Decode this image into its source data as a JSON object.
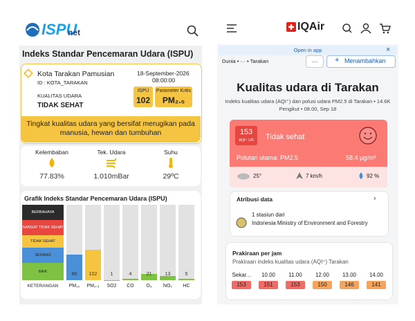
{
  "left": {
    "logo": {
      "main": "ISPU",
      "sub": "net"
    },
    "title": "Indeks Standar Pencemaran Udara (ISPU)",
    "station": {
      "name": "Kota Tarakan Pamusian",
      "date": "18-September-2026",
      "time": "08:00:00",
      "id": "ID : KOTA_TARAKAN",
      "quality_label": "KUALITAS UDARA",
      "quality": "TIDAK SEHAT",
      "ispu_label": "ISPU",
      "ispu": 102,
      "param_label": "Parameter Kritis",
      "param": "PM₂.₅"
    },
    "banner": "Tingkat kualitas udara yang bersifat merugikan pada manusia, hewan dan tumbuhan",
    "weather": [
      {
        "label": "Kelembaban",
        "value": "77.83%"
      },
      {
        "label": "Tek. Udara",
        "value": "1.010mBar"
      },
      {
        "label": "Suhu",
        "value": "29ºC"
      }
    ],
    "chart": {
      "title": "Grafik Indeks Standar Pencemaran Udara (ISPU)",
      "legend": [
        {
          "label": "BERBAHAYA",
          "color": "#2b2b2b"
        },
        {
          "label": "SANGAT TIDAK SEHAT",
          "color": "#e8473f"
        },
        {
          "label": "TIDAK SEHAT",
          "color": "#f5c542"
        },
        {
          "label": "SEDANG",
          "color": "#4a90d9"
        },
        {
          "label": "BAIK",
          "color": "#7dc242"
        }
      ],
      "legend_title": "KETERANGAN",
      "categories": [
        "PM₁₀",
        "PM₂.₅",
        "SO2",
        "CO",
        "O₃",
        "NO₂",
        "HC"
      ],
      "values": [
        86,
        102,
        1,
        4,
        21,
        13,
        5
      ],
      "colors": [
        "#4a90d9",
        "#f5c542",
        "#7dc242",
        "#7dc242",
        "#7dc242",
        "#7dc242",
        "#7dc242"
      ],
      "ylim": [
        0,
        250
      ]
    }
  },
  "right": {
    "logo": "IQAir",
    "open_app": "Open in app",
    "breadcrumb": [
      "Dunia",
      "···",
      "Tarakan"
    ],
    "more": "···",
    "add": "Menambahkan",
    "title": "Kualitas udara di Tarakan",
    "subtitle": "Indeks kualitas udara (AQI⁺) dan polusi udara PM2.5 di Tarakan • 14.6K Pengikut • 08.00, Sep 18",
    "aqi": 153,
    "aqi_unit": "AQI⁺ US",
    "status": "Tidak sehat",
    "pollutant": "Polutan utama: PM2.5",
    "concentration": "58.4 µg/m³",
    "temp": "25°",
    "wind": "7 km/h",
    "humidity": "92 %",
    "attribution": {
      "title": "Atribusi data",
      "line1": "1 stasiun dari",
      "line2": "Indonesia Ministry of Environment and Forestry"
    },
    "forecast": {
      "title": "Prakiraan per jam",
      "subtitle": "Prakiraan indeks kualitas udara (AQI⁺) Tarakan",
      "hours": [
        "Sekar...",
        "10.00",
        "11.00",
        "12.00",
        "13.00",
        "14.00"
      ],
      "values": [
        153,
        151,
        153,
        150,
        146,
        141
      ],
      "colors": [
        "#ef6b66",
        "#ef6b66",
        "#ef6b66",
        "#f5a45e",
        "#f5a45e",
        "#f5a45e"
      ]
    }
  }
}
